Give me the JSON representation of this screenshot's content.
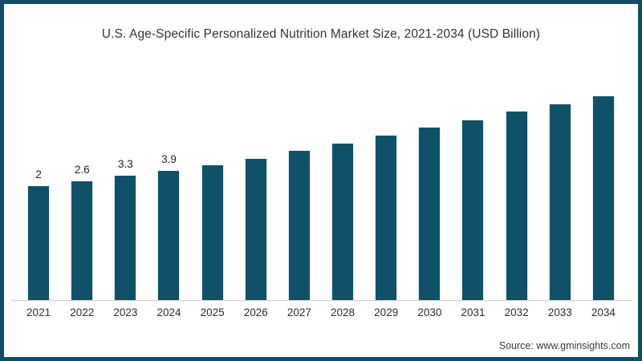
{
  "frame": {
    "border_color": "#124e68"
  },
  "chart_data": {
    "type": "bar",
    "title": "U.S. Age-Specific Personalized Nutrition Market Size, 2021-2034 (USD Billion)",
    "categories": [
      "2021",
      "2022",
      "2023",
      "2024",
      "2025",
      "2026",
      "2027",
      "2028",
      "2029",
      "2030",
      "2031",
      "2032",
      "2033",
      "2034"
    ],
    "values": [
      2,
      2.6,
      3.3,
      3.9,
      4.6,
      5.4,
      6.4,
      7.3,
      8.3,
      9.3,
      10.2,
      11.3,
      12.2,
      13.2
    ],
    "data_labels": [
      "2",
      "2.6",
      "3.3",
      "3.9",
      "",
      "",
      "",
      "",
      "",
      "",
      "",
      "",
      "",
      ""
    ],
    "xlabel": "",
    "ylabel": "",
    "unit": "USD Billion",
    "bar_color": "#0f5168",
    "bar_edge_color": "#d9edf7",
    "axis_line_color": "#c9c9c9",
    "grid": false,
    "legend": null,
    "y_axis_visible": false
  },
  "source": {
    "text": "Source: www.gminsights.com"
  }
}
